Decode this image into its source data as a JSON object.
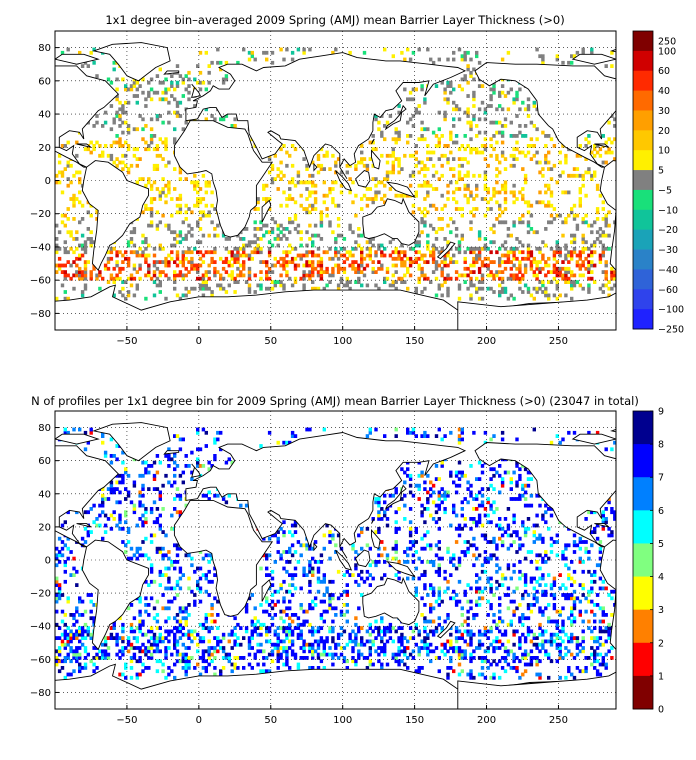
{
  "chart_data": [
    {
      "type": "heatmap",
      "title": "1x1 degree bin–averaged 2009 Spring (AMJ) mean Barrier Layer Thickness (>0)",
      "xlim": [
        -100,
        290
      ],
      "ylim": [
        -90,
        90
      ],
      "x_ticks": [
        -50,
        0,
        50,
        100,
        150,
        200,
        250
      ],
      "x_tick_labels": [
        "−50",
        "0",
        "50",
        "100",
        "150",
        "200",
        "250"
      ],
      "y_ticks": [
        80,
        60,
        40,
        20,
        0,
        -20,
        -40,
        -60,
        -80
      ],
      "y_tick_labels": [
        "80",
        "60",
        "40",
        "20",
        "0",
        "−20",
        "−40",
        "−60",
        "−80"
      ],
      "grid": true,
      "colorbar": {
        "tick_labels": [
          "250",
          "100",
          "60",
          "40",
          "30",
          "20",
          "10",
          "5",
          "−5",
          "−10",
          "−20",
          "−30",
          "−40",
          "−60",
          "−100",
          "−250"
        ],
        "colors": [
          "#7f0000",
          "#d00000",
          "#ff2a00",
          "#ff6a00",
          "#ff9f00",
          "#ffc800",
          "#fff000",
          "#808080",
          "#19e07a",
          "#10c49a",
          "#1aa3b8",
          "#2a82c8",
          "#2f63d8",
          "#2f43ec",
          "#1f22ff"
        ]
      }
    },
    {
      "type": "heatmap",
      "title": "N of profiles per 1x1 degree bin for 2009 Spring (AMJ) mean Barrier Layer Thickness (>0) (23047 in total)",
      "xlim": [
        -100,
        290
      ],
      "ylim": [
        -90,
        90
      ],
      "x_ticks": [
        -50,
        0,
        50,
        100,
        150,
        200,
        250
      ],
      "x_tick_labels": [
        "−50",
        "0",
        "50",
        "100",
        "150",
        "200",
        "250"
      ],
      "y_ticks": [
        80,
        60,
        40,
        20,
        0,
        -20,
        -40,
        -60,
        -80
      ],
      "y_tick_labels": [
        "80",
        "60",
        "40",
        "20",
        "0",
        "−20",
        "−40",
        "−60",
        "−80"
      ],
      "grid": true,
      "colorbar": {
        "range": [
          0,
          9
        ],
        "tick_labels": [
          "9",
          "8",
          "7",
          "6",
          "5",
          "4",
          "3",
          "2",
          "1",
          "0"
        ],
        "colors": [
          "#00008f",
          "#0000ff",
          "#0080ff",
          "#00ffff",
          "#80ff80",
          "#ffff00",
          "#ff8000",
          "#ff0000",
          "#800000"
        ]
      }
    }
  ]
}
